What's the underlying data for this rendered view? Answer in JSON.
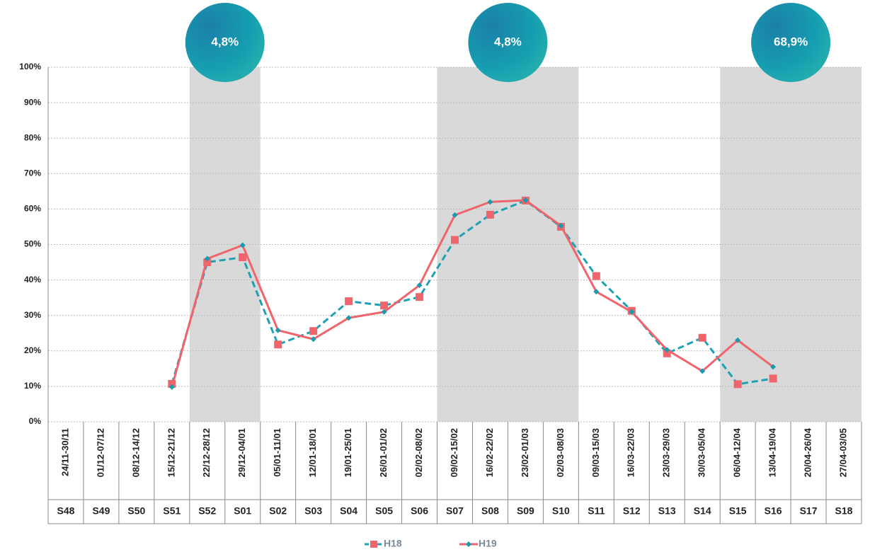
{
  "chart_data": {
    "type": "line",
    "categories": [
      "S48",
      "S49",
      "S50",
      "S51",
      "S52",
      "S01",
      "S02",
      "S03",
      "S04",
      "S05",
      "S06",
      "S07",
      "S08",
      "S09",
      "S10",
      "S11",
      "S12",
      "S13",
      "S14",
      "S15",
      "S16",
      "S17",
      "S18"
    ],
    "date_ranges": [
      "24/11-30/11",
      "01/12-07/12",
      "08/12-14/12",
      "15/12-21/12",
      "22/12-28/12",
      "29/12-04/01",
      "05/01-11/01",
      "12/01-18/01",
      "19/01-25/01",
      "26/01-01/02",
      "02/02-08/02",
      "09/02-15/02",
      "16/02-22/02",
      "23/02-01/03",
      "02/03-08/03",
      "09/03-15/03",
      "16/03-22/03",
      "23/03-29/03",
      "30/03-05/04",
      "06/04-12/04",
      "13/04-19/04",
      "20/04-26/04",
      "27/04-03/05"
    ],
    "ylim": [
      0,
      100
    ],
    "yticks": [
      {
        "value": 0,
        "label": "0%"
      },
      {
        "value": 10,
        "label": "10%"
      },
      {
        "value": 20,
        "label": "20%"
      },
      {
        "value": 30,
        "label": "30%"
      },
      {
        "value": 40,
        "label": "40%"
      },
      {
        "value": 50,
        "label": "50%"
      },
      {
        "value": 60,
        "label": "60%"
      },
      {
        "value": 70,
        "label": "70%"
      },
      {
        "value": 80,
        "label": "80%"
      },
      {
        "value": 90,
        "label": "90%"
      },
      {
        "value": 100,
        "label": "100%"
      }
    ],
    "grid": true,
    "bands": [
      {
        "from": "S52",
        "to": "S01",
        "label": "4,8%"
      },
      {
        "from": "S07",
        "to": "S10",
        "label": "4,8%"
      },
      {
        "from": "S15",
        "to": "S18",
        "label": "68,9%"
      }
    ],
    "band_color": "#d9d9d9",
    "series": [
      {
        "name": "H18",
        "color": "#f0646b",
        "line_color": "#1fa0b3",
        "line_style": "dashed",
        "marker": "square",
        "values": [
          null,
          null,
          null,
          10.7,
          45,
          46.4,
          21.8,
          25.6,
          34,
          32.8,
          35.2,
          51.3,
          58.4,
          62.4,
          55,
          41.1,
          31.3,
          19.3,
          23.7,
          10.6,
          12.2,
          null,
          null
        ]
      },
      {
        "name": "H19",
        "color": "#1a9aae",
        "line_color": "#f0646b",
        "line_style": "solid",
        "marker": "diamond",
        "values": [
          null,
          null,
          null,
          9.8,
          46,
          49.8,
          25.8,
          23.3,
          29.3,
          31,
          38.5,
          58.3,
          62,
          62.5,
          55.3,
          36.7,
          31,
          20.3,
          14.3,
          23,
          15.5,
          null,
          null
        ]
      }
    ]
  }
}
